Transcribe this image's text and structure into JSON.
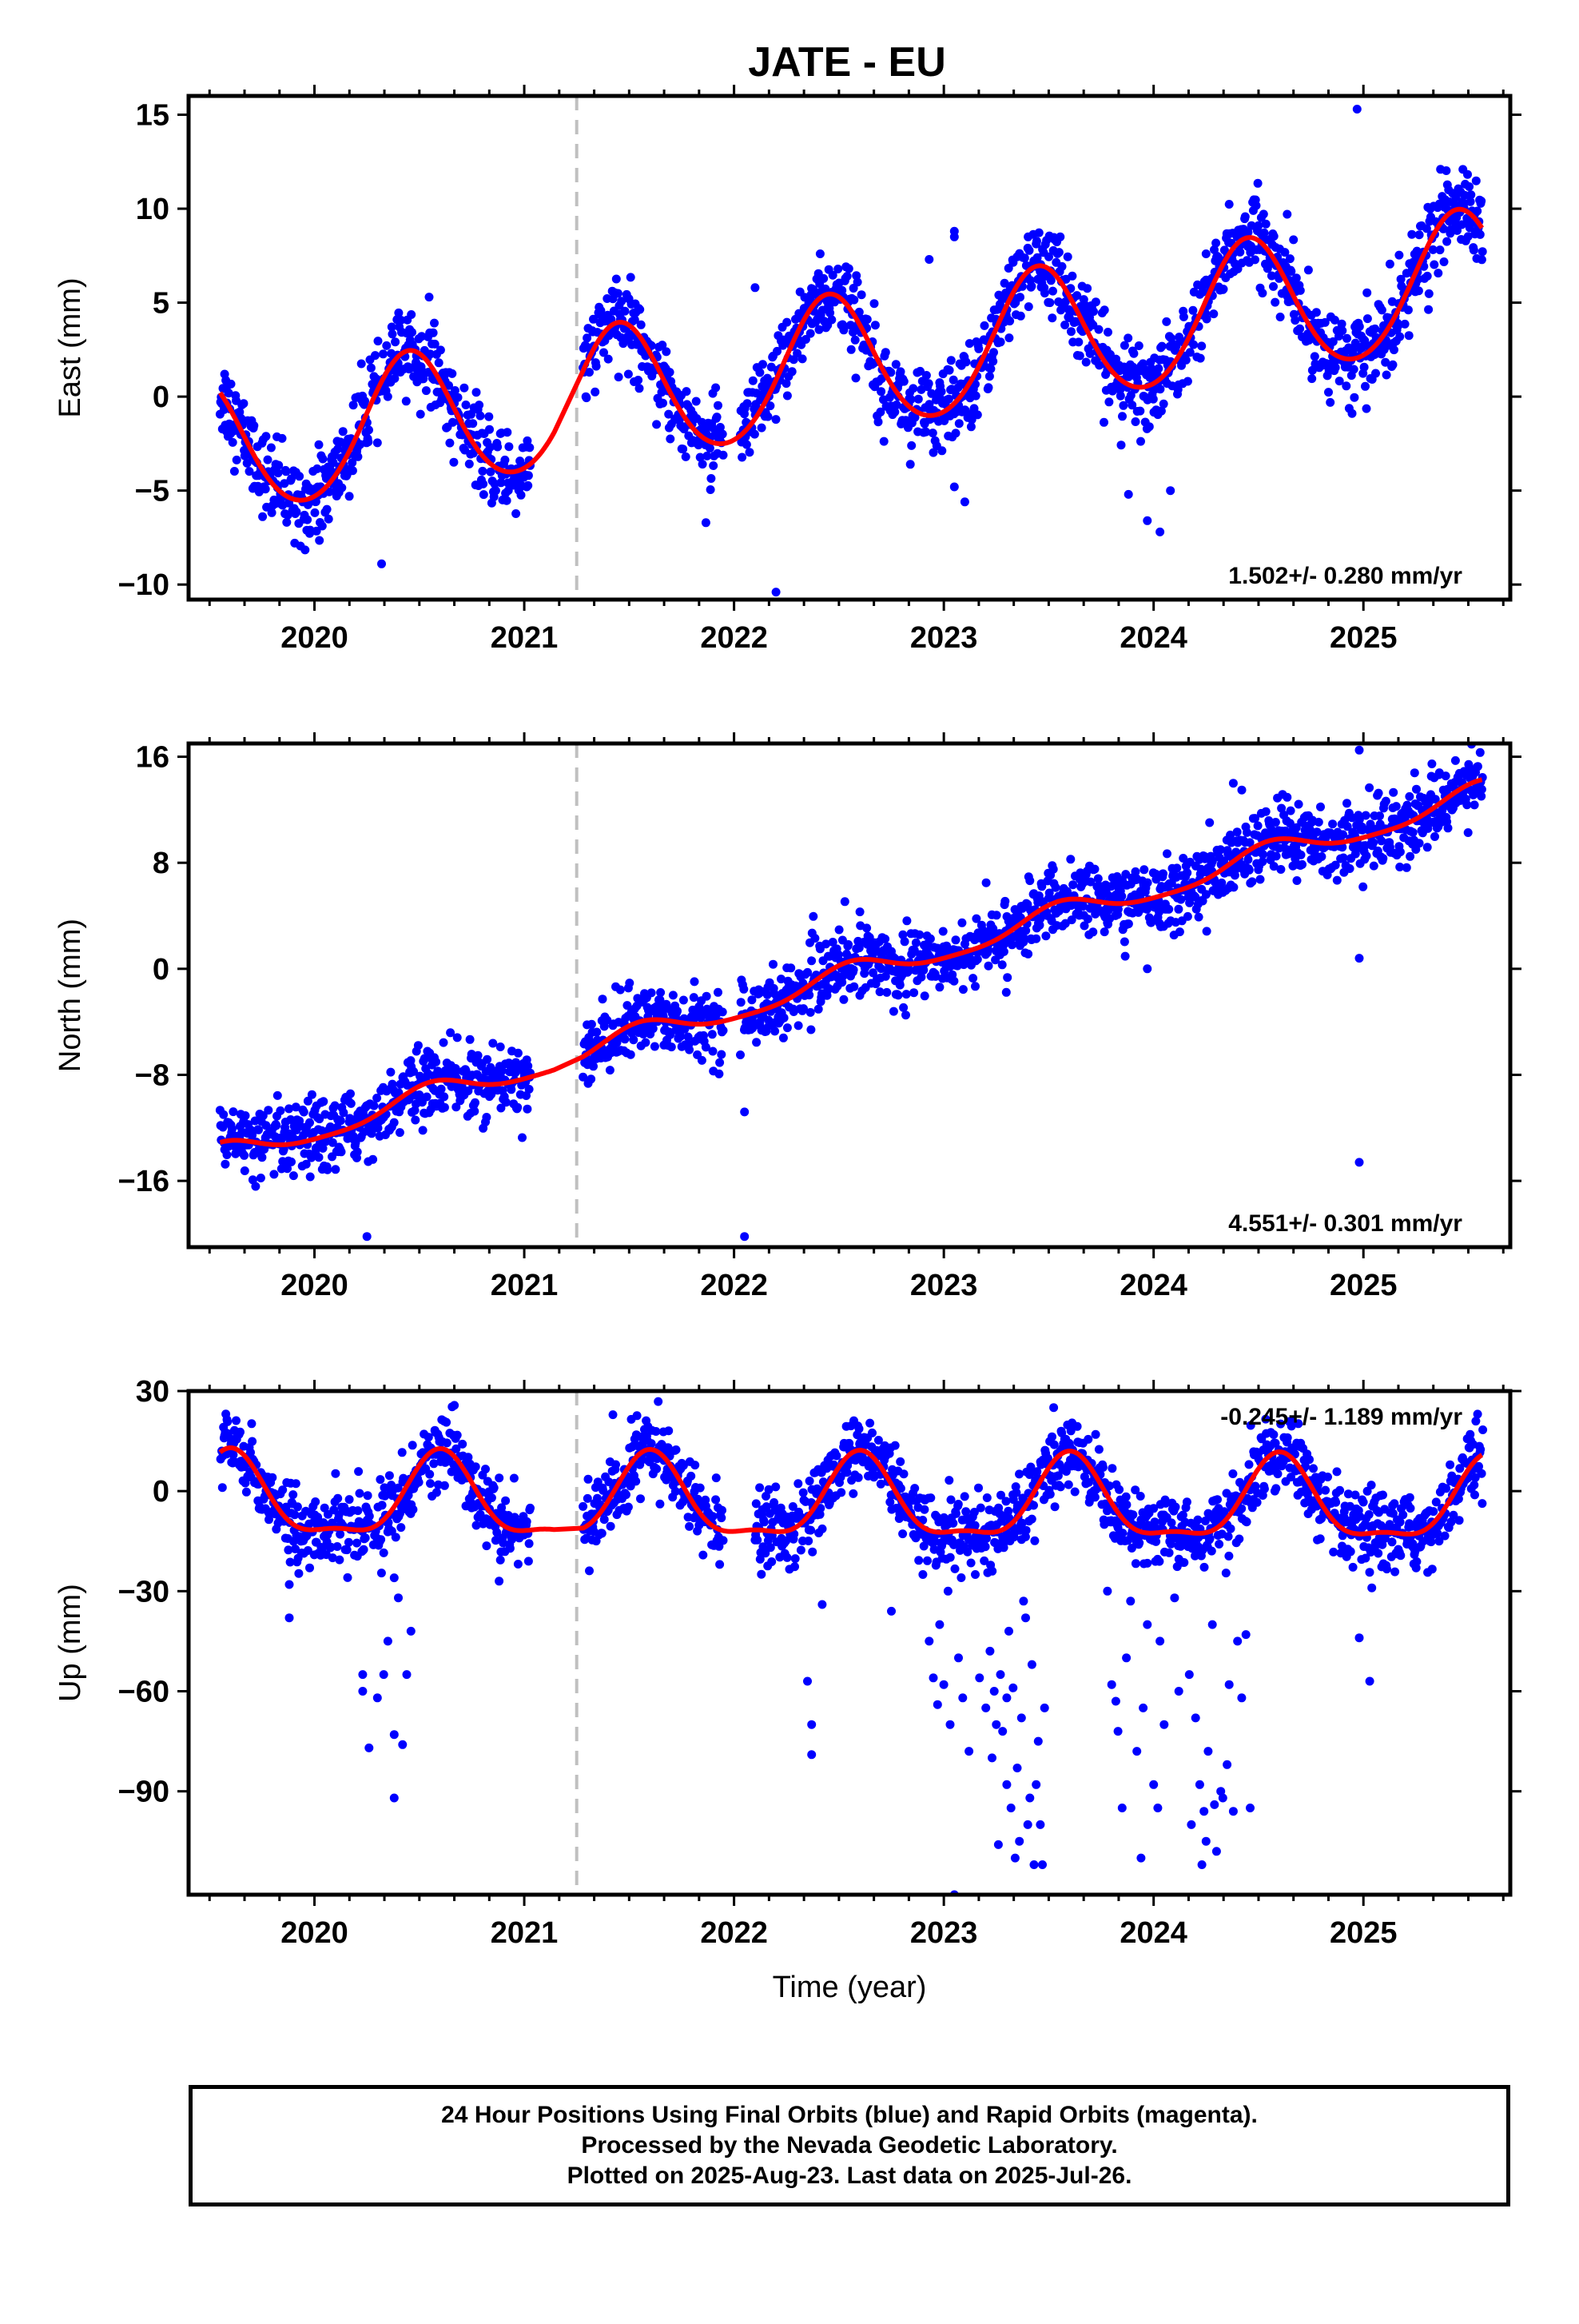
{
  "figure": {
    "title": "JATE - EU",
    "footer_lines": [
      "24 Hour Positions Using Final Orbits (blue) and Rapid Orbits (magenta).",
      "Processed by the Nevada Geodetic Laboratory.",
      "Plotted on 2025-Aug-23. Last data on 2025-Jul-26."
    ],
    "colors": {
      "points": "#0000ff",
      "model": "#ff0000",
      "break_line": "#c0c0c0",
      "frame": "#000000"
    }
  },
  "chart_data": [
    {
      "type": "scatter",
      "title": "JATE - EU",
      "ylabel": "East (mm)",
      "xlabel": "",
      "xlim": [
        2019.4,
        2025.7
      ],
      "ylim": [
        -10.8,
        16
      ],
      "xticks": [
        2020,
        2021,
        2022,
        2023,
        2024,
        2025
      ],
      "yticks": [
        -10,
        -5,
        0,
        5,
        10,
        15
      ],
      "rate_label": "1.502+/- 0.280 mm/yr",
      "rate_position": "bottom-right",
      "break_line_x": 2021.25,
      "grid": false,
      "model": {
        "name": "",
        "offset": -2.8,
        "trend": 1.502,
        "t0": 2019.55,
        "annual_amp": 3.6,
        "annual_peak": 2020.45,
        "semiannual_amp": 0.3,
        "semiannual_peak": 2020.45,
        "gap": [
          2021.15,
          2021.28
        ],
        "end": 2025.57
      },
      "series": [
        {
          "values_description_skip": false,
          "noise": 1.1,
          "segments": [
            [
              2019.55,
              2021.03
            ],
            [
              2021.28,
              2021.95
            ],
            [
              2022.03,
              2025.57
            ]
          ],
          "outliers": [
            [
              2024.97,
              15.3
            ],
            [
              2022.2,
              -10.4
            ],
            [
              2023.05,
              8.8
            ],
            [
              2023.05,
              8.5
            ],
            [
              2022.93,
              7.3
            ],
            [
              2020.32,
              -8.9
            ],
            [
              2023.4,
              7.9
            ],
            [
              2024.25,
              7.6
            ],
            [
              2025.38,
              9.5
            ],
            [
              2025.53,
              9.7
            ],
            [
              2024.03,
              -7.2
            ],
            [
              2023.97,
              -6.6
            ],
            [
              2023.05,
              -4.8
            ],
            [
              2023.1,
              -5.6
            ],
            [
              2023.88,
              -5.2
            ],
            [
              2024.08,
              -5.0
            ],
            [
              2022.1,
              5.8
            ]
          ]
        }
      ]
    },
    {
      "type": "scatter",
      "ylabel": "North (mm)",
      "xlabel": "",
      "xlim": [
        2019.4,
        2025.7
      ],
      "ylim": [
        -21,
        17
      ],
      "xticks": [
        2020,
        2021,
        2022,
        2023,
        2024,
        2025
      ],
      "yticks": [
        -16,
        -8,
        0,
        8,
        16
      ],
      "rate_label": "4.551+/- 0.301 mm/yr",
      "rate_position": "bottom-right",
      "break_line_x": 2021.25,
      "grid": false,
      "model": {
        "name": "",
        "offset": -14.2,
        "trend": 4.551,
        "t0": 2019.55,
        "annual_amp": 0.9,
        "annual_peak": 2020.55,
        "semiannual_amp": 0.2,
        "semiannual_peak": 2020.55,
        "gap": [
          2021.15,
          2021.28
        ],
        "end": 2025.57
      },
      "series": [
        {
          "noise": 1.3,
          "segments": [
            [
              2019.55,
              2021.03
            ],
            [
              2021.28,
              2021.95
            ],
            [
              2022.03,
              2025.57
            ]
          ],
          "outliers": [
            [
              2020.25,
              -20.2
            ],
            [
              2022.05,
              -20.2
            ],
            [
              2022.05,
              -10.8
            ],
            [
              2024.98,
              16.5
            ],
            [
              2024.98,
              0.8
            ],
            [
              2024.98,
              -14.6
            ],
            [
              2023.97,
              0.0
            ],
            [
              2024.38,
              14.0
            ],
            [
              2021.55,
              -2.3
            ],
            [
              2022.6,
              4.3
            ]
          ]
        }
      ]
    },
    {
      "type": "scatter",
      "ylabel": "Up (mm)",
      "xlabel": "Time (year)",
      "xlim": [
        2019.4,
        2025.7
      ],
      "ylim": [
        -121,
        30
      ],
      "xticks": [
        2020,
        2021,
        2022,
        2023,
        2024,
        2025
      ],
      "yticks": [
        -90,
        -60,
        -30,
        0,
        30
      ],
      "rate_label": "-0.245+/- 1.189 mm/yr",
      "rate_position": "top-right",
      "break_line_x": 2021.25,
      "grid": false,
      "model": {
        "name": "",
        "offset": -3.0,
        "trend": -0.245,
        "t0": 2019.55,
        "annual_amp": 12.0,
        "annual_peak": 2020.6,
        "semiannual_amp": 4.0,
        "semiannual_peak": 2020.6,
        "gap": [
          2021.15,
          2021.28
        ],
        "end": 2025.57
      },
      "series": [
        {
          "noise": 5.5,
          "segments": [
            [
              2019.55,
              2021.03
            ],
            [
              2021.28,
              2021.95
            ],
            [
              2022.1,
              2025.57
            ]
          ],
          "outliers": [
            [
              2019.88,
              -28
            ],
            [
              2019.88,
              -38
            ],
            [
              2020.23,
              -55
            ],
            [
              2020.23,
              -60
            ],
            [
              2020.26,
              -77
            ],
            [
              2020.3,
              -62
            ],
            [
              2020.33,
              -55
            ],
            [
              2020.35,
              -45
            ],
            [
              2020.38,
              -92
            ],
            [
              2020.38,
              -73
            ],
            [
              2020.42,
              -76
            ],
            [
              2020.44,
              -55
            ],
            [
              2020.46,
              -42
            ],
            [
              2020.4,
              -32
            ],
            [
              2020.38,
              -26
            ],
            [
              2020.88,
              -27
            ],
            [
              2022.35,
              -57
            ],
            [
              2022.37,
              -70
            ],
            [
              2022.37,
              -79
            ],
            [
              2022.42,
              -34
            ],
            [
              2022.9,
              -25
            ],
            [
              2022.93,
              -45
            ],
            [
              2022.95,
              -56
            ],
            [
              2022.97,
              -64
            ],
            [
              2022.98,
              -40
            ],
            [
              2023.0,
              -58
            ],
            [
              2023.02,
              -30
            ],
            [
              2023.03,
              -70
            ],
            [
              2023.05,
              -121
            ],
            [
              2023.07,
              -50
            ],
            [
              2023.09,
              -62
            ],
            [
              2023.12,
              -78
            ],
            [
              2023.15,
              -25
            ],
            [
              2023.17,
              -56
            ],
            [
              2023.2,
              -65
            ],
            [
              2023.22,
              -48
            ],
            [
              2023.23,
              -80
            ],
            [
              2023.24,
              -60
            ],
            [
              2023.26,
              -106
            ],
            [
              2023.28,
              -72
            ],
            [
              2023.3,
              -62
            ],
            [
              2023.31,
              -42
            ],
            [
              2023.32,
              -95
            ],
            [
              2023.34,
              -110
            ],
            [
              2023.35,
              -83
            ],
            [
              2023.37,
              -68
            ],
            [
              2023.38,
              -33
            ],
            [
              2023.4,
              -100
            ],
            [
              2023.42,
              -52
            ],
            [
              2023.43,
              -112
            ],
            [
              2023.44,
              -88
            ],
            [
              2023.45,
              -75
            ],
            [
              2023.47,
              -112
            ],
            [
              2023.48,
              -65
            ],
            [
              2023.3,
              -88
            ],
            [
              2023.27,
              -55
            ],
            [
              2023.25,
              -70
            ],
            [
              2023.33,
              -59
            ],
            [
              2023.36,
              -105
            ],
            [
              2023.39,
              -38
            ],
            [
              2023.41,
              -92
            ],
            [
              2023.46,
              -100
            ],
            [
              2023.78,
              -30
            ],
            [
              2023.8,
              -58
            ],
            [
              2023.82,
              -63
            ],
            [
              2023.83,
              -72
            ],
            [
              2023.85,
              -95
            ],
            [
              2023.87,
              -50
            ],
            [
              2023.89,
              -33
            ],
            [
              2023.92,
              -78
            ],
            [
              2023.94,
              -110
            ],
            [
              2023.95,
              -65
            ],
            [
              2023.97,
              -40
            ],
            [
              2024.0,
              -88
            ],
            [
              2024.02,
              -95
            ],
            [
              2024.03,
              -45
            ],
            [
              2024.05,
              -70
            ],
            [
              2024.1,
              -32
            ],
            [
              2024.12,
              -60
            ],
            [
              2024.17,
              -55
            ],
            [
              2024.18,
              -100
            ],
            [
              2024.2,
              -68
            ],
            [
              2024.22,
              -88
            ],
            [
              2024.24,
              -96
            ],
            [
              2024.25,
              -105
            ],
            [
              2024.26,
              -78
            ],
            [
              2024.28,
              -40
            ],
            [
              2024.3,
              -108
            ],
            [
              2024.32,
              -90
            ],
            [
              2024.33,
              -92
            ],
            [
              2024.35,
              -82
            ],
            [
              2024.36,
              -58
            ],
            [
              2024.38,
              -96
            ],
            [
              2024.4,
              -45
            ],
            [
              2024.42,
              -62
            ],
            [
              2024.44,
              -43
            ],
            [
              2024.46,
              -95
            ],
            [
              2024.23,
              -112
            ],
            [
              2024.29,
              -94
            ],
            [
              2024.98,
              -44
            ],
            [
              2025.03,
              -57
            ],
            [
              2025.04,
              -29
            ],
            [
              2022.75,
              -36
            ]
          ]
        }
      ]
    }
  ]
}
